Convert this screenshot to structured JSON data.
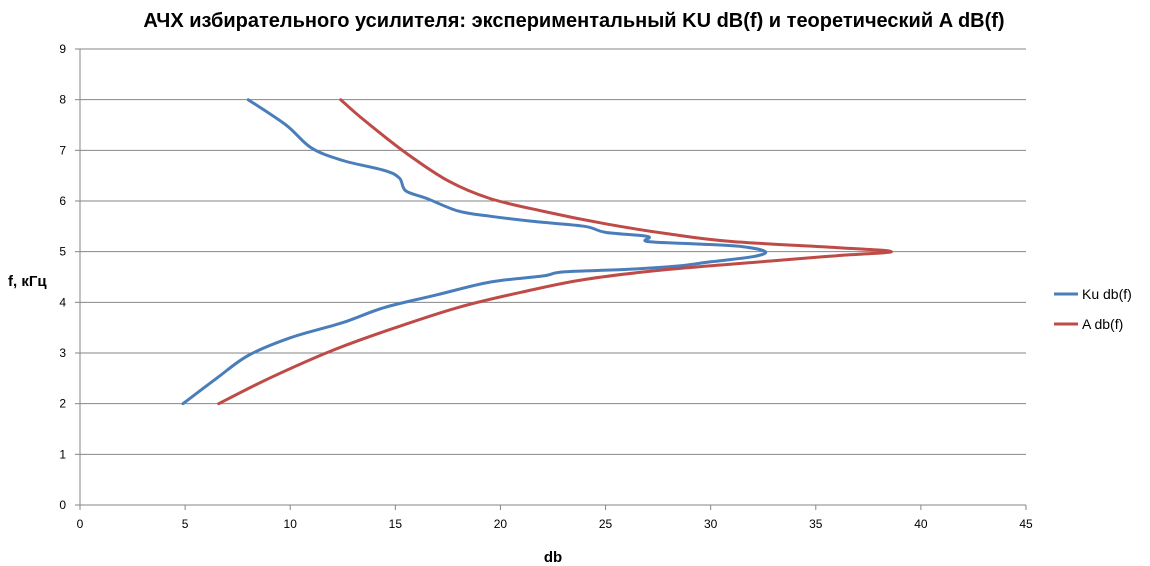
{
  "chart_data": {
    "type": "line",
    "title": "АЧХ избирательного усилителя: экспериментальный KU dB(f) и  теоретический A dB(f)",
    "xlabel": "db",
    "ylabel": "f, кГц",
    "xlim": [
      0,
      45
    ],
    "ylim": [
      0,
      9
    ],
    "x_ticks": [
      "0",
      "5",
      "10",
      "15",
      "20",
      "25",
      "30",
      "35",
      "40",
      "45"
    ],
    "y_ticks": [
      "0",
      "1",
      "2",
      "3",
      "4",
      "5",
      "6",
      "7",
      "8",
      "9"
    ],
    "grid": "horizontal",
    "legend_position": "right",
    "series": [
      {
        "name": "Ku db(f)",
        "color": "#4a7ebb",
        "points": [
          [
            4.9,
            2.0
          ],
          [
            6.5,
            2.5
          ],
          [
            8.0,
            2.95
          ],
          [
            10.0,
            3.3
          ],
          [
            12.5,
            3.6
          ],
          [
            14.5,
            3.9
          ],
          [
            17.0,
            4.15
          ],
          [
            19.5,
            4.4
          ],
          [
            22.0,
            4.52
          ],
          [
            23.0,
            4.6
          ],
          [
            26.0,
            4.65
          ],
          [
            28.5,
            4.72
          ],
          [
            30.0,
            4.8
          ],
          [
            32.0,
            4.9
          ],
          [
            32.6,
            5.0
          ],
          [
            31.5,
            5.1
          ],
          [
            29.5,
            5.15
          ],
          [
            27.0,
            5.2
          ],
          [
            27.0,
            5.3
          ],
          [
            25.0,
            5.38
          ],
          [
            24.0,
            5.5
          ],
          [
            21.5,
            5.6
          ],
          [
            19.5,
            5.7
          ],
          [
            18.0,
            5.8
          ],
          [
            16.5,
            6.05
          ],
          [
            15.5,
            6.2
          ],
          [
            15.2,
            6.45
          ],
          [
            14.5,
            6.6
          ],
          [
            12.5,
            6.8
          ],
          [
            11.0,
            7.05
          ],
          [
            9.8,
            7.5
          ],
          [
            8.0,
            8.0
          ]
        ]
      },
      {
        "name": "A db(f)",
        "color": "#be4b48",
        "points": [
          [
            6.6,
            2.0
          ],
          [
            9.0,
            2.5
          ],
          [
            12.0,
            3.05
          ],
          [
            15.0,
            3.5
          ],
          [
            18.0,
            3.9
          ],
          [
            21.0,
            4.2
          ],
          [
            24.0,
            4.45
          ],
          [
            28.0,
            4.65
          ],
          [
            33.0,
            4.82
          ],
          [
            36.0,
            4.92
          ],
          [
            38.6,
            5.0
          ],
          [
            36.0,
            5.08
          ],
          [
            31.0,
            5.2
          ],
          [
            28.0,
            5.35
          ],
          [
            25.0,
            5.55
          ],
          [
            22.0,
            5.8
          ],
          [
            19.5,
            6.05
          ],
          [
            17.5,
            6.4
          ],
          [
            15.5,
            6.95
          ],
          [
            13.5,
            7.6
          ],
          [
            12.4,
            8.0
          ]
        ]
      }
    ]
  }
}
